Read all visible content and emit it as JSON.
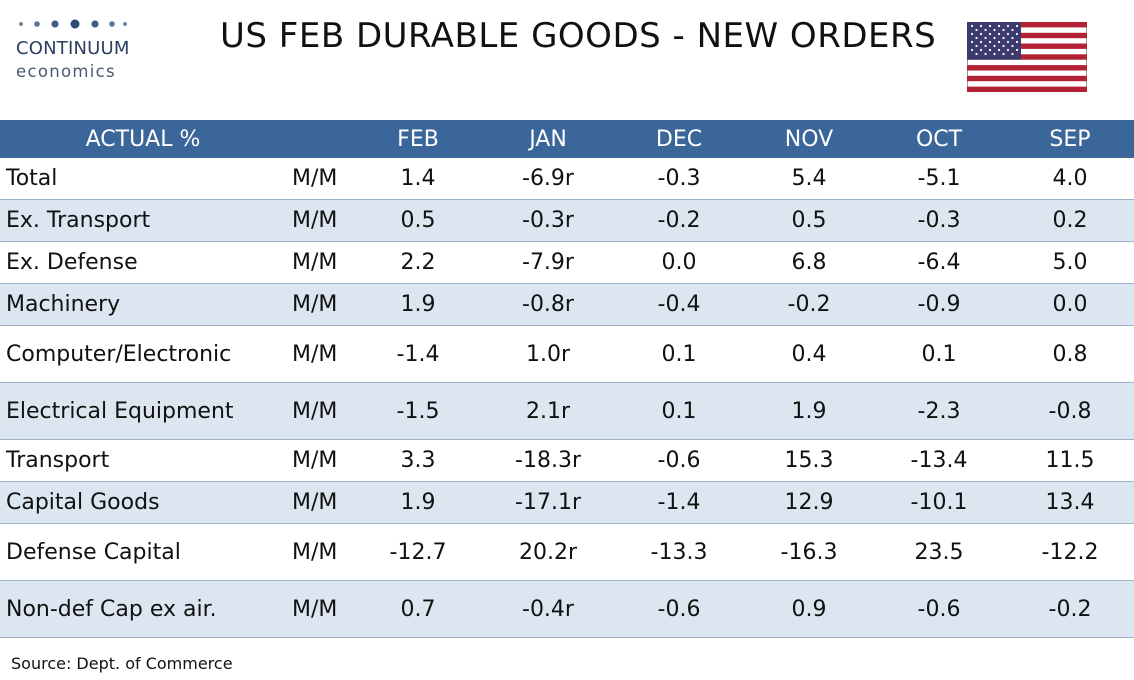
{
  "logo": {
    "brand": "CONTINUUM",
    "sub": "economics"
  },
  "title": "US FEB DURABLE GOODS - NEW ORDERS",
  "flag_icon": "us-flag-icon",
  "table": {
    "header": [
      "ACTUAL %",
      "FEB",
      "JAN",
      "DEC",
      "NOV",
      "OCT",
      "SEP"
    ],
    "rows": [
      {
        "name": "Total",
        "unit": "M/M",
        "values": [
          "1.4",
          "-6.9r",
          "-0.3",
          "5.4",
          "-5.1",
          "4.0"
        ]
      },
      {
        "name": "Ex. Transport",
        "unit": "M/M",
        "values": [
          "0.5",
          "-0.3r",
          "-0.2",
          "0.5",
          "-0.3",
          "0.2"
        ]
      },
      {
        "name": "Ex. Defense",
        "unit": "M/M",
        "values": [
          "2.2",
          "-7.9r",
          "0.0",
          "6.8",
          "-6.4",
          "5.0"
        ]
      },
      {
        "name": "Machinery",
        "unit": "M/M",
        "values": [
          "1.9",
          "-0.8r",
          "-0.4",
          "-0.2",
          "-0.9",
          "0.0"
        ]
      },
      {
        "name": "Computer/Electronic",
        "unit": "M/M",
        "values": [
          "-1.4",
          "1.0r",
          "0.1",
          "0.4",
          "0.1",
          "0.8"
        ]
      },
      {
        "name": "Electrical Equipment",
        "unit": "M/M",
        "values": [
          "-1.5",
          "2.1r",
          "0.1",
          "1.9",
          "-2.3",
          "-0.8"
        ]
      },
      {
        "name": "Transport",
        "unit": "M/M",
        "values": [
          "3.3",
          "-18.3r",
          "-0.6",
          "15.3",
          "-13.4",
          "11.5"
        ]
      },
      {
        "name": "Capital Goods",
        "unit": "M/M",
        "values": [
          "1.9",
          "-17.1r",
          "-1.4",
          "12.9",
          "-10.1",
          "13.4"
        ]
      },
      {
        "name": "Defense Capital",
        "unit": "M/M",
        "values": [
          "-12.7",
          "20.2r",
          "-13.3",
          "-16.3",
          "23.5",
          "-12.2"
        ]
      },
      {
        "name": "Non-def Cap ex air.",
        "unit": "M/M",
        "values": [
          "0.7",
          "-0.4r",
          "-0.6",
          "0.9",
          "-0.6",
          "-0.2"
        ]
      }
    ]
  },
  "source": "Source: Dept. of Commerce",
  "colors": {
    "header_bg": "#3a6699",
    "alt_row_bg": "#dce6f1",
    "brand": "#2b3f5e"
  }
}
